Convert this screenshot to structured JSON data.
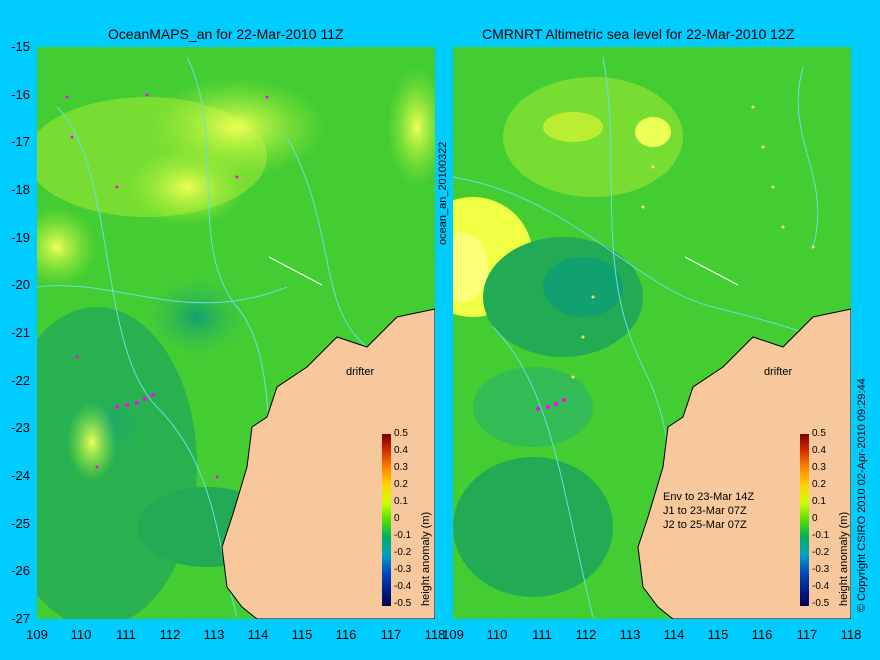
{
  "left_panel": {
    "title": "OceanMAPS_an for 22-Mar-2010 11Z",
    "vertical_label": "ocean_an_20100322"
  },
  "right_panel": {
    "title": "CMRNRT Altimetric sea level  for 22-Mar-2010 12Z",
    "notes": [
      "Env to 23-Mar 14Z",
      "J1 to 23-Mar 07Z",
      "J2 to 25-Mar 07Z"
    ]
  },
  "drifter_label": "drifter",
  "y_ticks": [
    "-15",
    "-16",
    "-17",
    "-18",
    "-19",
    "-20",
    "-21",
    "-22",
    "-23",
    "-24",
    "-25",
    "-26",
    "-27"
  ],
  "x_ticks": [
    "109",
    "110",
    "111",
    "112",
    "113",
    "114",
    "115",
    "116",
    "117",
    "118"
  ],
  "colorbar": {
    "label": "height anomaly (m)",
    "ticks": [
      "0.5",
      "0.4",
      "0.3",
      "0.2",
      "0.1",
      "0",
      "-0.1",
      "-0.2",
      "-0.3",
      "-0.4",
      "-0.5"
    ]
  },
  "copyright": "© Copyright CSIRO 2010  02-Apr-2010 09:29:44",
  "colors": {
    "background": "#00ccff",
    "land": "#f7c89b",
    "contour": "#66e0e0",
    "drifter": "#ff00ff"
  }
}
